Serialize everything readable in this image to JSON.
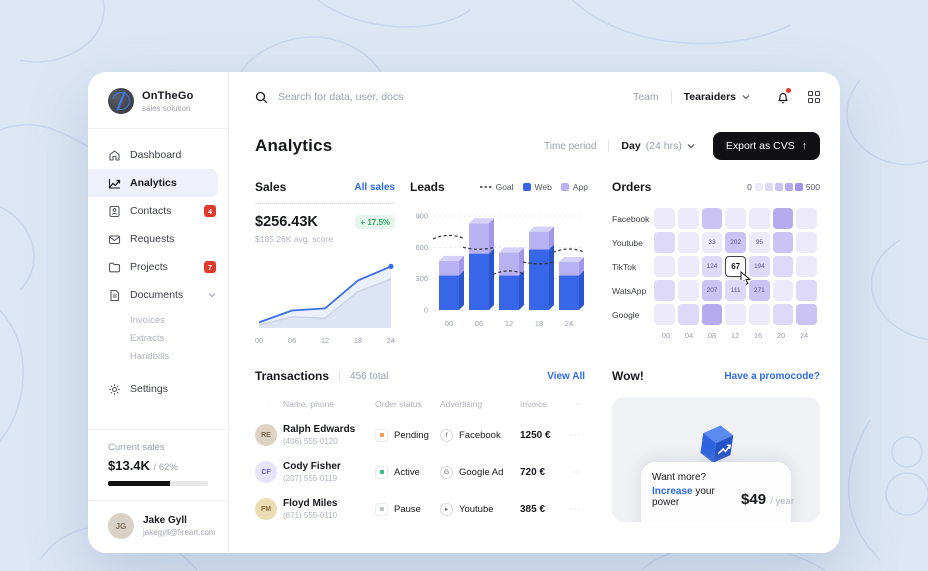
{
  "app": {
    "name": "OnTheGo",
    "tagline": "sales solution",
    "logo_icon": "globe-icon"
  },
  "topbar": {
    "search_placeholder": "Search for data, user, docs",
    "team_label": "Team",
    "team_name": "Tearaiders",
    "icons": [
      "search-icon",
      "chevron-down-icon",
      "bell-icon",
      "apps-grid-icon"
    ]
  },
  "sidebar": {
    "items": [
      {
        "label": "Dashboard",
        "icon": "home-icon"
      },
      {
        "label": "Analytics",
        "icon": "analytics-icon",
        "active": true
      },
      {
        "label": "Contacts",
        "icon": "contacts-icon",
        "badge": "4"
      },
      {
        "label": "Requests",
        "icon": "mail-icon"
      },
      {
        "label": "Projects",
        "icon": "folder-icon",
        "badge": "7"
      },
      {
        "label": "Documents",
        "icon": "document-icon",
        "children": [
          "Invoices",
          "Extracts",
          "Handbills"
        ]
      },
      {
        "label": "Settings",
        "icon": "gear-icon"
      }
    ],
    "current_sales": {
      "label": "Current sales",
      "value": "$13.4K",
      "percent_label": "/ 62%",
      "percent": 62
    },
    "user": {
      "name": "Jake Gyll",
      "email": "jakegyll@fireart.com",
      "initials": "JG"
    }
  },
  "header": {
    "title": "Analytics",
    "time_period_label": "Time period",
    "period_main": "Day",
    "period_sub": "(24 hrs)",
    "export_label": "Export as CVS",
    "export_icon": "arrow-up-icon"
  },
  "sales": {
    "title": "Sales",
    "link": "All sales",
    "value": "$256.43K",
    "delta": "+ 17.5%",
    "avg": "$185.26K avg. score"
  },
  "leads": {
    "title": "Leads"
  },
  "orders": {
    "title": "Orders",
    "scale_min": "0",
    "scale_max": "500"
  },
  "transactions": {
    "title": "Transactions",
    "total": "456 total",
    "view_all": "View All",
    "columns": [
      "Name, phone",
      "Order status",
      "Advertising",
      "Invoice"
    ],
    "rows": [
      {
        "name": "Ralph Edwards",
        "phone": "(406) 555-0120",
        "status": "Pending",
        "status_color": "#f2994a",
        "ad": "Facebook",
        "ad_glyph": "f",
        "invoice": "1250 €",
        "initials": "RE",
        "avatar_bg": "#ddd2c3",
        "avatar_fg": "#7b6a52"
      },
      {
        "name": "Cody Fisher",
        "phone": "(207) 555-0119",
        "status": "Active",
        "status_color": "#2fc281",
        "ad": "Google Ad",
        "ad_glyph": "G",
        "invoice": "720 €",
        "initials": "CF",
        "avatar_bg": "#e7e3fb",
        "avatar_fg": "#7466d8"
      },
      {
        "name": "Floyd Miles",
        "phone": "(671) 555-0110",
        "status": "Pause",
        "status_color": "#bcc1c9",
        "ad": "Youtube",
        "ad_glyph": "▸",
        "invoice": "385 €",
        "initials": "FM",
        "avatar_bg": "#ecdcb4",
        "avatar_fg": "#8a6d34"
      }
    ]
  },
  "promo": {
    "title": "Wow!",
    "link": "Have a promocode?",
    "want": "Want more?",
    "increase_word": "Increase",
    "power_rest": " your power",
    "price": "$49",
    "per": "/ year",
    "cube_icon": "growth-cube-icon"
  },
  "colors": {
    "accent_blue": "#2e6be6",
    "badge_red": "#e0392f",
    "green": "#2fa866",
    "bar_web": "#3766e8",
    "bar_app": "#b9b2f2",
    "heat_palette": [
      "#edeafb",
      "#ded9f8",
      "#cbc3f4",
      "#b7abef",
      "#a193ea"
    ]
  },
  "chart_data": [
    {
      "type": "line",
      "title": "Sales",
      "x": [
        0,
        6,
        12,
        18,
        24
      ],
      "xticklabels": [
        "00",
        "06",
        "12",
        "18",
        "24"
      ],
      "ylim": [
        0,
        100
      ],
      "grid": false,
      "series": [
        {
          "name": "current",
          "values": [
            8,
            25,
            28,
            68,
            88
          ],
          "color": "#3a6fe8"
        },
        {
          "name": "previous",
          "values": [
            4,
            16,
            14,
            52,
            70
          ],
          "color": "#ccd4e6"
        }
      ]
    },
    {
      "type": "bar",
      "title": "Leads",
      "stacked": true,
      "categories": [
        "00",
        "06",
        "12",
        "18",
        "24"
      ],
      "yticks": [
        0,
        300,
        600,
        900
      ],
      "ylim": [
        0,
        900
      ],
      "grid": true,
      "legend_position": "top-right",
      "series": [
        {
          "name": "Web",
          "values": [
            330,
            540,
            330,
            580,
            330
          ],
          "color": "#3766e8"
        },
        {
          "name": "App",
          "values": [
            140,
            290,
            220,
            170,
            130
          ],
          "color": "#b9b2f2"
        }
      ],
      "goal": {
        "name": "Goal",
        "values": [
          700,
          620,
          360,
          480,
          570
        ],
        "style": "dashed",
        "color": "#33343d"
      }
    },
    {
      "type": "heatmap",
      "title": "Orders",
      "rows": [
        "Facebook",
        "Youtube",
        "TikTok",
        "WatsApp",
        "Google"
      ],
      "cols": [
        "00",
        "04",
        "08",
        "12",
        "16",
        "20",
        "24"
      ],
      "scale": {
        "min": 0,
        "max": 500
      },
      "values": [
        [
          70,
          90,
          260,
          60,
          70,
          330,
          95
        ],
        [
          180,
          70,
          33,
          202,
          95,
          240,
          60
        ],
        [
          60,
          70,
          124,
          67,
          194,
          110,
          65
        ],
        [
          175,
          95,
          207,
          111,
          271,
          70,
          115
        ],
        [
          95,
          175,
          340,
          75,
          65,
          180,
          210
        ]
      ],
      "numbered_rows": [
        1,
        2,
        3
      ],
      "numbered_cols": [
        2,
        3,
        4
      ],
      "highlight": {
        "row": 2,
        "col": 3,
        "value": 67
      }
    }
  ]
}
